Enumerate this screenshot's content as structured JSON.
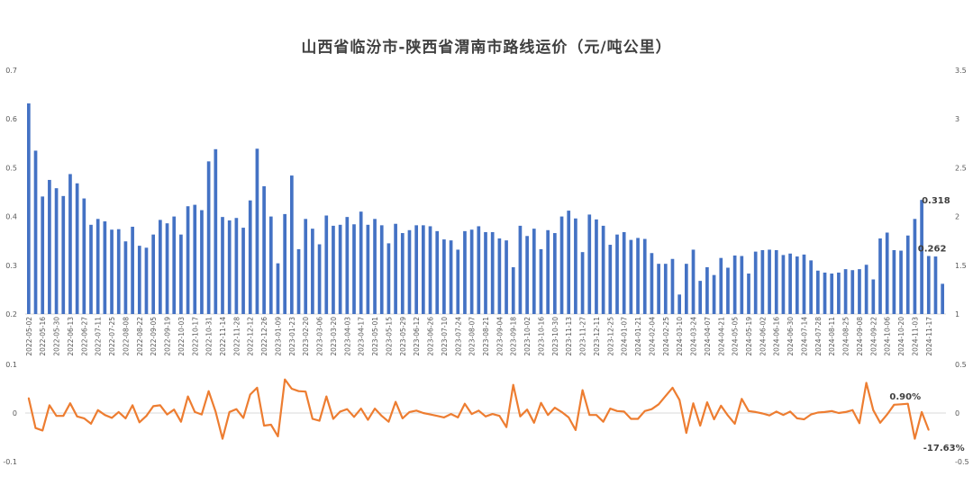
{
  "chart_data": {
    "title": "山西省临汾市-陕西省渭南市路线运价（元/吨公里）",
    "type": "bar+line",
    "colors": {
      "bar": "#4472C4",
      "line": "#ED7D31",
      "text": "#595959",
      "axis": "#D9D9D9"
    },
    "top_panel": {
      "type": "bar",
      "ylim_left": [
        0.2,
        0.7
      ],
      "yticks_left": [
        "0.2",
        "0.3",
        "0.4",
        "0.5",
        "0.6",
        "0.7"
      ],
      "ylim_right": [
        1,
        3.5
      ],
      "yticks_right": [
        "1",
        "1.5",
        "2",
        "2.5",
        "3",
        "3.5"
      ],
      "grid": false,
      "values": [
        0.632,
        0.535,
        0.441,
        0.475,
        0.458,
        0.442,
        0.487,
        0.468,
        0.437,
        0.383,
        0.395,
        0.39,
        0.373,
        0.374,
        0.349,
        0.379,
        0.34,
        0.336,
        0.363,
        0.393,
        0.386,
        0.4,
        0.363,
        0.421,
        0.424,
        0.413,
        0.513,
        0.538,
        0.399,
        0.392,
        0.397,
        0.377,
        0.433,
        0.539,
        0.462,
        0.4,
        0.304,
        0.405,
        0.484,
        0.333,
        0.395,
        0.375,
        0.343,
        0.402,
        0.381,
        0.383,
        0.399,
        0.384,
        0.41,
        0.383,
        0.395,
        0.382,
        0.345,
        0.385,
        0.366,
        0.372,
        0.382,
        0.382,
        0.38,
        0.37,
        0.353,
        0.351,
        0.332,
        0.37,
        0.373,
        0.38,
        0.368,
        0.368,
        0.355,
        0.351,
        0.296,
        0.381,
        0.36,
        0.375,
        0.333,
        0.372,
        0.366,
        0.4,
        0.412,
        0.396,
        0.327,
        0.404,
        0.394,
        0.381,
        0.342,
        0.363,
        0.368,
        0.352,
        0.356,
        0.354,
        0.325,
        0.303,
        0.303,
        0.313,
        0.24,
        0.303,
        0.332,
        0.268,
        0.296,
        0.28,
        0.315,
        0.295,
        0.32,
        0.319,
        0.283,
        0.328,
        0.331,
        0.332,
        0.331,
        0.321,
        0.324,
        0.318,
        0.322,
        0.31,
        0.289,
        0.285,
        0.283,
        0.285,
        0.292,
        0.29,
        0.292,
        0.301,
        0.271,
        0.355,
        0.367,
        0.331,
        0.33,
        0.361,
        0.395,
        0.434,
        0.319,
        0.318,
        0.262
      ],
      "data_labels": [
        {
          "index": 129,
          "text": "0.318"
        },
        {
          "index": 130,
          "text": "0.262"
        }
      ]
    },
    "x_labels": [
      "2022-05-02",
      "2022-05-16",
      "2022-05-30",
      "2022-06-13",
      "2022-06-27",
      "2022-07-11",
      "2022-07-25",
      "2022-08-08",
      "2022-08-22",
      "2022-09-05",
      "2022-09-19",
      "2022-10-03",
      "2022-10-17",
      "2022-10-31",
      "2022-11-14",
      "2022-11-28",
      "2022-12-12",
      "2022-12-26",
      "2023-01-09",
      "2023-01-23",
      "2023-02-20",
      "2023-03-06",
      "2023-03-20",
      "2023-04-03",
      "2023-04-17",
      "2023-05-01",
      "2023-05-15",
      "2023-05-29",
      "2023-06-12",
      "2023-06-26",
      "2023-07-10",
      "2023-07-24",
      "2023-08-07",
      "2023-08-21",
      "2023-09-04",
      "2023-09-18",
      "2023-10-02",
      "2023-10-16",
      "2023-10-30",
      "2023-11-13",
      "2023-11-27",
      "2023-12-11",
      "2023-12-25",
      "2024-01-07",
      "2024-01-21",
      "2024-02-04",
      "2024-02-25",
      "2024-03-10",
      "2024-03-24",
      "2024-04-07",
      "2024-04-21",
      "2024-05-05",
      "2024-05-19",
      "2024-06-02",
      "2024-06-16",
      "2024-06-30",
      "2024-07-14",
      "2024-07-28",
      "2024-08-11",
      "2024-08-25",
      "2024-09-08",
      "2024-09-22",
      "2024-10-06",
      "2024-10-20",
      "2024-11-03",
      "2024-11-17"
    ],
    "bottom_panel": {
      "type": "line",
      "ylim_left": [
        -0.1,
        0.1
      ],
      "yticks_left": [
        "-0.1",
        "0",
        "0.1"
      ],
      "ylim_right": [
        -0.5,
        0.5
      ],
      "yticks_right": [
        "-0.5",
        "0",
        "0.5"
      ],
      "values": [
        0.031,
        -0.031,
        -0.036,
        0.016,
        -0.006,
        -0.006,
        0.02,
        -0.007,
        -0.011,
        -0.022,
        0.006,
        -0.004,
        -0.01,
        0.002,
        -0.011,
        0.016,
        -0.019,
        -0.006,
        0.014,
        0.016,
        -0.003,
        0.007,
        -0.018,
        0.034,
        0.002,
        -0.003,
        0.045,
        0.003,
        -0.053,
        0.002,
        0.008,
        -0.01,
        0.038,
        0.052,
        -0.026,
        -0.024,
        -0.048,
        0.069,
        0.05,
        0.045,
        0.044,
        -0.012,
        -0.016,
        0.034,
        -0.012,
        0.003,
        0.008,
        -0.008,
        0.009,
        -0.014,
        0.009,
        -0.006,
        -0.018,
        0.023,
        -0.011,
        0.002,
        0.005,
        0,
        -0.003,
        -0.006,
        -0.009,
        -0.002,
        -0.009,
        0.019,
        -0.002,
        0.005,
        -0.007,
        -0.002,
        -0.006,
        -0.029,
        0.058,
        -0.007,
        0.007,
        -0.02,
        0.021,
        -0.004,
        0.011,
        0.002,
        -0.009,
        -0.035,
        0.047,
        -0.004,
        -0.004,
        -0.018,
        0.009,
        0.004,
        0.003,
        -0.012,
        -0.012,
        0.004,
        0.008,
        0.018,
        0.035,
        0.052,
        0.027,
        -0.041,
        0.02,
        -0.026,
        0.022,
        -0.013,
        0.015,
        -0.005,
        -0.022,
        0.029,
        0.004,
        0.002,
        -0.001,
        -0.005,
        0.003,
        -0.004,
        0.003,
        -0.011,
        -0.013,
        -0.003,
        0.001,
        0.002,
        0.004,
        0,
        0.002,
        0.006,
        -0.021,
        0.062,
        0.006,
        -0.02,
        -0.003,
        0.017,
        0.018,
        0.019,
        -0.053,
        0.002,
        -0.035
      ],
      "data_labels": [
        {
          "index": 129,
          "text": "0.90%"
        },
        {
          "index": 130,
          "text": "-17.63%"
        }
      ]
    }
  }
}
